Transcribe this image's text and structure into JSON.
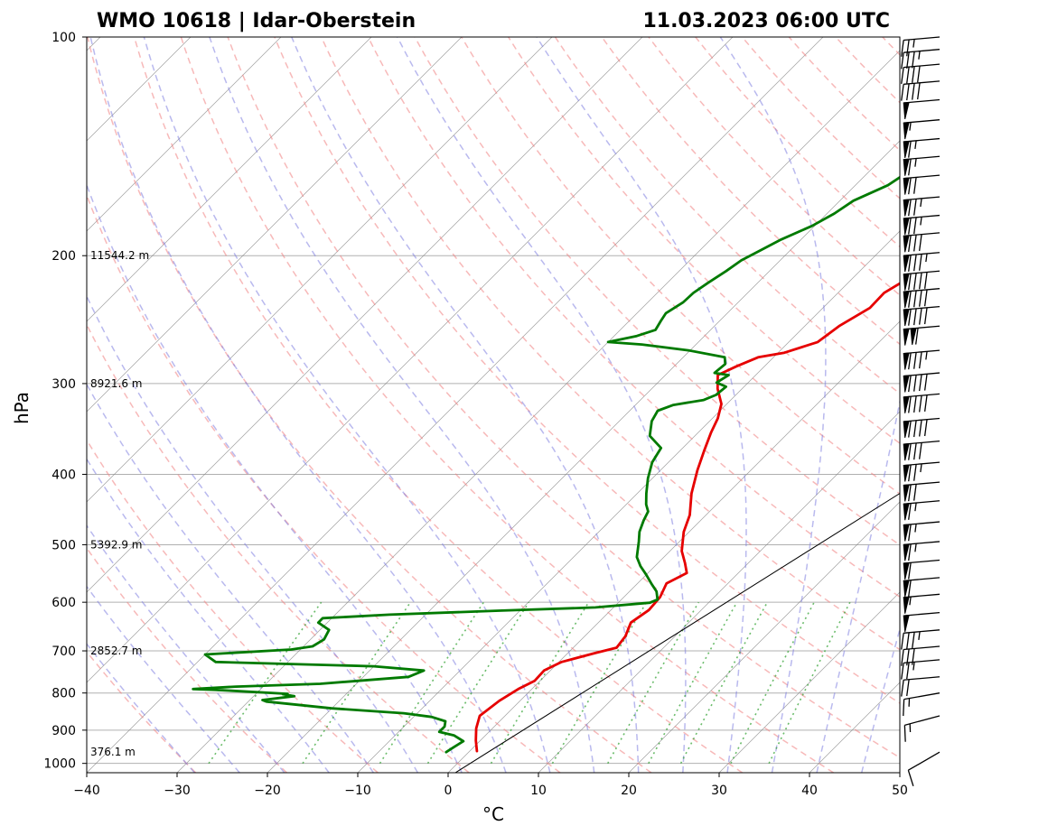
{
  "chart_data": {
    "type": "line",
    "title_left": "WMO 10618 | Idar-Oberstein",
    "title_right": "11.03.2023 06:00 UTC",
    "xlabel": "°C",
    "ylabel": "hPa",
    "xlim": [
      -40,
      50
    ],
    "ylim": [
      1030,
      100
    ],
    "y_scale": "log",
    "x_ticks": [
      "−40",
      "−30",
      "−20",
      "−10",
      "0",
      "10",
      "20",
      "30",
      "40",
      "50"
    ],
    "y_ticks": [
      "100",
      "200",
      "300",
      "400",
      "500",
      "600",
      "700",
      "800",
      "900",
      "1000"
    ],
    "grid": true,
    "height_labels": [
      {
        "p": 200,
        "label": "11544.2 m"
      },
      {
        "p": 300,
        "label": "8921.6 m"
      },
      {
        "p": 500,
        "label": "5392.9 m"
      },
      {
        "p": 700,
        "label": "2852.7 m"
      },
      {
        "p": 965,
        "label": "376.1 m"
      }
    ],
    "colors": {
      "temperature": "#e60000",
      "dewpoint": "#007a00",
      "dry_adiabat": "#f08080",
      "moist_adiabat": "#8080e0",
      "mixing_ratio": "#2ca02c",
      "isotherm": "#808080",
      "grid": "#b0b0b0"
    },
    "series": [
      {
        "key": "temperature",
        "points": [
          [
            0.8,
            962
          ],
          [
            -0.5,
            930
          ],
          [
            -1.8,
            895
          ],
          [
            -2.8,
            860
          ],
          [
            -2.3,
            820
          ],
          [
            -1.5,
            790
          ],
          [
            -0.6,
            770
          ],
          [
            -0.7,
            745
          ],
          [
            0.3,
            725
          ],
          [
            3.0,
            705
          ],
          [
            4.8,
            693
          ],
          [
            4.5,
            668
          ],
          [
            3.6,
            640
          ],
          [
            4.2,
            615
          ],
          [
            4.0,
            590
          ],
          [
            3.2,
            565
          ],
          [
            4.3,
            547
          ],
          [
            3.0,
            530
          ],
          [
            1.3,
            510
          ],
          [
            -0.6,
            480
          ],
          [
            -1.8,
            455
          ],
          [
            -4.0,
            425
          ],
          [
            -5.9,
            395
          ],
          [
            -7.4,
            370
          ],
          [
            -8.6,
            350
          ],
          [
            -9.4,
            335
          ],
          [
            -10.6,
            320
          ],
          [
            -12.7,
            305
          ],
          [
            -14.2,
            292
          ],
          [
            -13.1,
            284
          ],
          [
            -11.7,
            276
          ],
          [
            -9.3,
            272
          ],
          [
            -6.8,
            263
          ],
          [
            -6.2,
            250
          ],
          [
            -4.8,
            236
          ],
          [
            -4.9,
            225
          ],
          [
            -3.5,
            212
          ],
          [
            -2.0,
            200
          ],
          [
            -0.9,
            190
          ],
          [
            0.6,
            180
          ],
          [
            3.6,
            175
          ],
          [
            5.3,
            165
          ],
          [
            6.8,
            152
          ],
          [
            8.7,
            143
          ],
          [
            9.7,
            135
          ],
          [
            13.2,
            126
          ],
          [
            14.4,
            118
          ],
          [
            14.4,
            112
          ],
          [
            16.1,
            108
          ],
          [
            17.8,
            103
          ],
          [
            18.3,
            100
          ]
        ]
      },
      {
        "key": "dewpoint",
        "points": [
          [
            -2.5,
            965
          ],
          [
            -2.2,
            950
          ],
          [
            -1.8,
            932
          ],
          [
            -3.5,
            915
          ],
          [
            -5.5,
            905
          ],
          [
            -5.5,
            890
          ],
          [
            -6.0,
            875
          ],
          [
            -8.0,
            863
          ],
          [
            -11.5,
            853
          ],
          [
            -20.0,
            840
          ],
          [
            -28.0,
            822
          ],
          [
            -28.6,
            818
          ],
          [
            -25.5,
            808
          ],
          [
            -27.0,
            803
          ],
          [
            -26.5,
            802
          ],
          [
            -35.0,
            792
          ],
          [
            -37.5,
            790
          ],
          [
            -33.0,
            784
          ],
          [
            -24.0,
            777
          ],
          [
            -15.0,
            760
          ],
          [
            -14.0,
            745
          ],
          [
            -20.0,
            735
          ],
          [
            -38.0,
            725
          ],
          [
            -40.0,
            708
          ],
          [
            -31.0,
            697
          ],
          [
            -29.0,
            690
          ],
          [
            -28.5,
            675
          ],
          [
            -29.0,
            655
          ],
          [
            -31.0,
            640
          ],
          [
            -31.0,
            631
          ],
          [
            -24.0,
            624
          ],
          [
            -12.0,
            616
          ],
          [
            -2.0,
            610
          ],
          [
            3.5,
            601
          ],
          [
            4.0,
            595
          ],
          [
            3.0,
            580
          ],
          [
            1.5,
            565
          ],
          [
            0.0,
            550
          ],
          [
            -1.6,
            535
          ],
          [
            -3.0,
            520
          ],
          [
            -4.5,
            495
          ],
          [
            -5.5,
            480
          ],
          [
            -6.3,
            463
          ],
          [
            -6.8,
            450
          ],
          [
            -7.8,
            440
          ],
          [
            -9.0,
            425
          ],
          [
            -10.5,
            405
          ],
          [
            -11.8,
            385
          ],
          [
            -12.4,
            368
          ],
          [
            -15.0,
            354
          ],
          [
            -16.4,
            338
          ],
          [
            -16.9,
            327
          ],
          [
            -15.8,
            321
          ],
          [
            -13.0,
            316
          ],
          [
            -12.2,
            311
          ],
          [
            -12.0,
            303
          ],
          [
            -13.5,
            299
          ],
          [
            -13.0,
            292
          ],
          [
            -14.8,
            290
          ],
          [
            -14.6,
            282
          ],
          [
            -15.4,
            276
          ],
          [
            -20.2,
            270
          ],
          [
            -26.0,
            265
          ],
          [
            -30.0,
            263
          ],
          [
            -27.5,
            258
          ],
          [
            -26.1,
            253
          ],
          [
            -26.5,
            246
          ],
          [
            -26.8,
            240
          ],
          [
            -26.1,
            232
          ],
          [
            -26.0,
            225
          ],
          [
            -25.5,
            218
          ],
          [
            -24.8,
            210
          ],
          [
            -24.3,
            203
          ],
          [
            -23.2,
            196
          ],
          [
            -22.2,
            190
          ],
          [
            -20.3,
            182
          ],
          [
            -19.2,
            175
          ],
          [
            -18.5,
            168
          ],
          [
            -16.4,
            160
          ],
          [
            -15.6,
            153
          ],
          [
            -14.8,
            146
          ],
          [
            -13.2,
            138
          ],
          [
            -12.7,
            131
          ],
          [
            -11.5,
            125
          ],
          [
            -10.5,
            118
          ],
          [
            -10.0,
            112
          ],
          [
            -8.5,
            106
          ],
          [
            -7.0,
            101
          ],
          [
            -6.6,
            100
          ]
        ]
      }
    ],
    "parcel_line": [
      [
        0.8,
        1030
      ],
      [
        30.0,
        250
      ]
    ],
    "wind_barbs": [
      {
        "p": 965,
        "speed_kt": 10,
        "dir_deg": 240
      },
      {
        "p": 860,
        "speed_kt": 15,
        "dir_deg": 255
      },
      {
        "p": 800,
        "speed_kt": 15,
        "dir_deg": 260
      },
      {
        "p": 760,
        "speed_kt": 20,
        "dir_deg": 265
      },
      {
        "p": 720,
        "speed_kt": 25,
        "dir_deg": 265
      },
      {
        "p": 690,
        "speed_kt": 30,
        "dir_deg": 265
      },
      {
        "p": 655,
        "speed_kt": 35,
        "dir_deg": 265
      },
      {
        "p": 620,
        "speed_kt": 50,
        "dir_deg": 265
      },
      {
        "p": 585,
        "speed_kt": 55,
        "dir_deg": 265
      },
      {
        "p": 555,
        "speed_kt": 60,
        "dir_deg": 265
      },
      {
        "p": 525,
        "speed_kt": 60,
        "dir_deg": 265
      },
      {
        "p": 495,
        "speed_kt": 65,
        "dir_deg": 265
      },
      {
        "p": 465,
        "speed_kt": 65,
        "dir_deg": 265
      },
      {
        "p": 435,
        "speed_kt": 65,
        "dir_deg": 265
      },
      {
        "p": 410,
        "speed_kt": 70,
        "dir_deg": 265
      },
      {
        "p": 385,
        "speed_kt": 75,
        "dir_deg": 265
      },
      {
        "p": 360,
        "speed_kt": 80,
        "dir_deg": 265
      },
      {
        "p": 335,
        "speed_kt": 90,
        "dir_deg": 265
      },
      {
        "p": 310,
        "speed_kt": 90,
        "dir_deg": 265
      },
      {
        "p": 290,
        "speed_kt": 90,
        "dir_deg": 265
      },
      {
        "p": 270,
        "speed_kt": 85,
        "dir_deg": 265
      },
      {
        "p": 250,
        "speed_kt": 110,
        "dir_deg": 265
      },
      {
        "p": 235,
        "speed_kt": 90,
        "dir_deg": 265
      },
      {
        "p": 222,
        "speed_kt": 90,
        "dir_deg": 265
      },
      {
        "p": 210,
        "speed_kt": 90,
        "dir_deg": 265
      },
      {
        "p": 198,
        "speed_kt": 85,
        "dir_deg": 265
      },
      {
        "p": 186,
        "speed_kt": 80,
        "dir_deg": 265
      },
      {
        "p": 176,
        "speed_kt": 75,
        "dir_deg": 265
      },
      {
        "p": 166,
        "speed_kt": 75,
        "dir_deg": 265
      },
      {
        "p": 155,
        "speed_kt": 70,
        "dir_deg": 265
      },
      {
        "p": 146,
        "speed_kt": 65,
        "dir_deg": 265
      },
      {
        "p": 138,
        "speed_kt": 65,
        "dir_deg": 265
      },
      {
        "p": 130,
        "speed_kt": 55,
        "dir_deg": 265
      },
      {
        "p": 122,
        "speed_kt": 50,
        "dir_deg": 265
      },
      {
        "p": 115,
        "speed_kt": 40,
        "dir_deg": 265
      },
      {
        "p": 109,
        "speed_kt": 40,
        "dir_deg": 265
      },
      {
        "p": 104,
        "speed_kt": 35,
        "dir_deg": 265
      },
      {
        "p": 100,
        "speed_kt": 25,
        "dir_deg": 265
      }
    ]
  }
}
